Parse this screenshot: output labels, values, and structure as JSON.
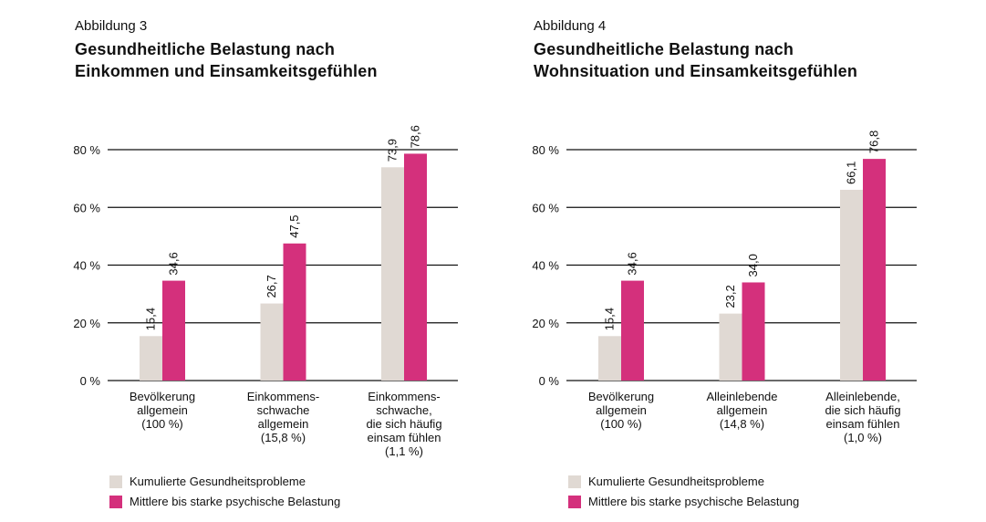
{
  "colors": {
    "series1": "#e0d9d3",
    "series2": "#d4307c",
    "grid": "#111111"
  },
  "chart_data": [
    {
      "type": "bar",
      "figure_label": "Abbildung 3",
      "title": "Gesundheitliche Belastung nach Einkommen und Einsamkeitsgefühlen",
      "title_lines": [
        "Gesundheitliche Belastung nach",
        "Einkommen und Einsamkeitsgefühlen"
      ],
      "categories": [
        [
          "Bevölkerung",
          "allgemein",
          "(100 %)"
        ],
        [
          "Einkommens-",
          "schwache",
          "allgemein",
          "(15,8 %)"
        ],
        [
          "Einkommens-",
          "schwache,",
          "die sich häufig",
          "einsam fühlen",
          "(1,1 %)"
        ]
      ],
      "series": [
        {
          "name": "Kumulierte Gesundheitsprobleme",
          "values": [
            15.4,
            26.7,
            73.9
          ],
          "labels": [
            "15,4",
            "26,7",
            "73,9"
          ]
        },
        {
          "name": "Mittlere bis starke psychische Belastung",
          "values": [
            34.6,
            47.5,
            78.6
          ],
          "labels": [
            "34,6",
            "47,5",
            "78,6"
          ]
        }
      ],
      "yticks": [
        0,
        20,
        40,
        60,
        80
      ],
      "ytick_labels": [
        "0 %",
        "20 %",
        "40 %",
        "60 %",
        "80 %"
      ],
      "ylim": [
        0,
        80
      ],
      "grid": true,
      "legend": "bottom-left"
    },
    {
      "type": "bar",
      "figure_label": "Abbildung 4",
      "title": "Gesundheitliche Belastung nach Wohnsituation und Einsamkeitsgefühlen",
      "title_lines": [
        "Gesundheitliche Belastung nach",
        "Wohnsituation und Einsamkeitsgefühlen"
      ],
      "categories": [
        [
          "Bevölkerung",
          "allgemein",
          "(100 %)"
        ],
        [
          "Alleinlebende",
          "allgemein",
          "(14,8 %)"
        ],
        [
          "Alleinlebende,",
          "die sich häufig",
          "einsam fühlen",
          "(1,0 %)"
        ]
      ],
      "series": [
        {
          "name": "Kumulierte Gesundheitsprobleme",
          "values": [
            15.4,
            23.2,
            66.1
          ],
          "labels": [
            "15,4",
            "23,2",
            "66,1"
          ]
        },
        {
          "name": "Mittlere bis starke psychische Belastung",
          "values": [
            34.6,
            34.0,
            76.8
          ],
          "labels": [
            "34,6",
            "34,0",
            "76,8"
          ]
        }
      ],
      "yticks": [
        0,
        20,
        40,
        60,
        80
      ],
      "ytick_labels": [
        "0 %",
        "20 %",
        "40 %",
        "60 %",
        "80 %"
      ],
      "ylim": [
        0,
        80
      ],
      "grid": true,
      "legend": "bottom-left"
    }
  ]
}
